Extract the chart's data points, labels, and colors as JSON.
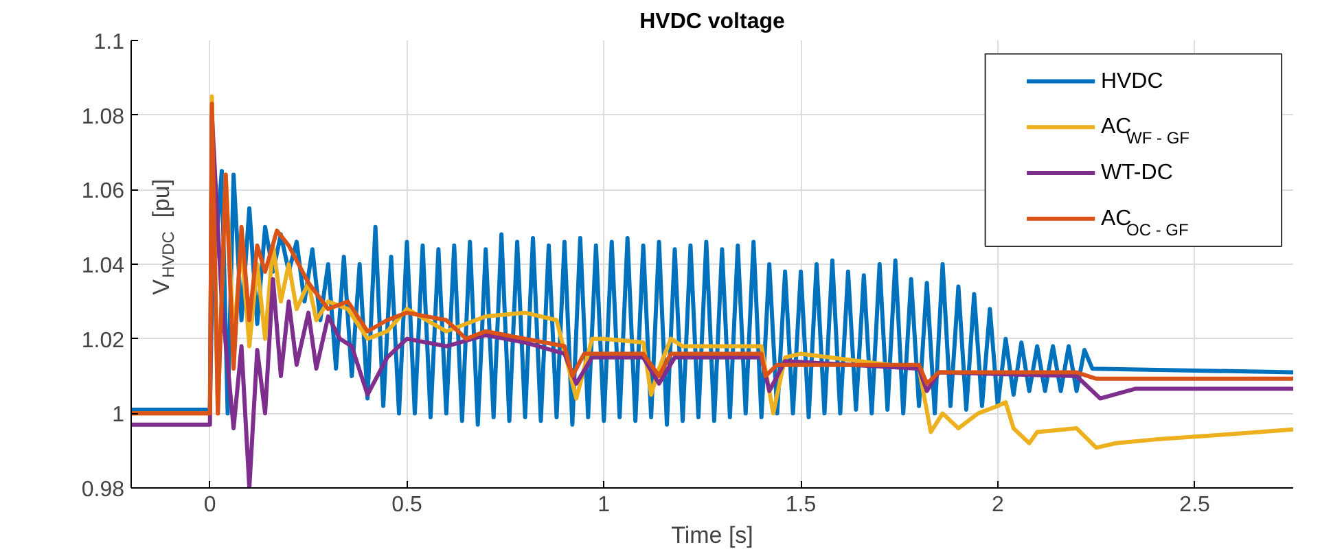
{
  "chart_data": {
    "type": "line",
    "title": "HVDC voltage",
    "xlabel": "Time [s]",
    "ylabel": "V$_{HVDC}$ [pu]",
    "xlim": [
      -0.2,
      2.75
    ],
    "ylim": [
      0.98,
      1.1
    ],
    "xticks": [
      0,
      0.5,
      1,
      1.5,
      2,
      2.5
    ],
    "yticks": [
      0.98,
      1,
      1.02,
      1.04,
      1.06,
      1.08,
      1.1
    ],
    "grid": true,
    "legend": "top right",
    "line_style": "solid",
    "series": [
      {
        "name": "HVDC",
        "color": "#0072bd",
        "x": [
          -0.2,
          0,
          0.005,
          0.03,
          0.045,
          0.06,
          0.08,
          0.1,
          0.12,
          0.14,
          0.16,
          0.18,
          0.2,
          0.22,
          0.24,
          0.26,
          0.28,
          0.3,
          0.32,
          0.34,
          0.36,
          0.38,
          0.4,
          0.42,
          0.44,
          0.46,
          0.48,
          0.5,
          0.52,
          0.54,
          0.56,
          0.58,
          0.6,
          0.62,
          0.64,
          0.66,
          0.68,
          0.7,
          0.72,
          0.74,
          0.76,
          0.78,
          0.8,
          0.82,
          0.84,
          0.86,
          0.88,
          0.9,
          0.92,
          0.94,
          0.96,
          0.98,
          1.0,
          1.02,
          1.04,
          1.06,
          1.08,
          1.1,
          1.12,
          1.14,
          1.16,
          1.18,
          1.2,
          1.22,
          1.24,
          1.26,
          1.28,
          1.3,
          1.32,
          1.34,
          1.36,
          1.38,
          1.4,
          1.42,
          1.44,
          1.46,
          1.48,
          1.5,
          1.52,
          1.54,
          1.56,
          1.58,
          1.6,
          1.62,
          1.64,
          1.66,
          1.68,
          1.7,
          1.72,
          1.74,
          1.76,
          1.78,
          1.8,
          1.82,
          1.84,
          1.86,
          1.88,
          1.9,
          1.92,
          1.94,
          1.96,
          1.98,
          2.0,
          2.02,
          2.04,
          2.06,
          2.08,
          2.1,
          2.12,
          2.14,
          2.16,
          2.18,
          2.2,
          2.22,
          2.24,
          2.75
        ],
        "values": [
          1.001,
          1.001,
          1.03,
          1.065,
          1.0,
          1.064,
          1.025,
          1.055,
          1.024,
          1.05,
          1.038,
          1.048,
          1.038,
          1.046,
          1.03,
          1.044,
          1.025,
          1.04,
          1.012,
          1.042,
          1.01,
          1.04,
          1.004,
          1.05,
          1.002,
          1.042,
          1.0,
          1.046,
          1.0,
          1.045,
          0.999,
          1.044,
          1.0,
          1.045,
          0.998,
          1.046,
          0.997,
          1.044,
          0.999,
          1.048,
          0.998,
          1.046,
          0.999,
          1.047,
          0.998,
          1.045,
          0.999,
          1.046,
          0.997,
          1.047,
          0.999,
          1.045,
          0.998,
          1.046,
          0.999,
          1.047,
          0.998,
          1.045,
          0.999,
          1.046,
          0.997,
          1.044,
          0.998,
          1.045,
          0.999,
          1.046,
          0.998,
          1.044,
          0.999,
          1.045,
          1.0,
          1.046,
          0.999,
          1.04,
          1.0,
          1.038,
          1.0,
          1.038,
          0.999,
          1.04,
          1.0,
          1.041,
          1.0,
          1.038,
          1.001,
          1.037,
          1.0,
          1.04,
          1.001,
          1.041,
          1.0,
          1.036,
          1.002,
          1.035,
          1.0,
          1.04,
          1.002,
          1.034,
          1.001,
          1.032,
          1.002,
          1.028,
          1.002,
          1.02,
          1.005,
          1.019,
          1.006,
          1.018,
          1.006,
          1.018,
          1.006,
          1.018,
          1.006,
          1.017,
          1.012,
          1.011
        ]
      },
      {
        "name": "AC$_{WF - GF}$",
        "color": "#edb120",
        "x": [
          -0.2,
          0,
          0.005,
          0.02,
          0.04,
          0.06,
          0.08,
          0.1,
          0.12,
          0.14,
          0.16,
          0.18,
          0.2,
          0.22,
          0.25,
          0.27,
          0.3,
          0.35,
          0.4,
          0.45,
          0.5,
          0.6,
          0.7,
          0.8,
          0.88,
          0.93,
          0.97,
          1.0,
          1.1,
          1.12,
          1.14,
          1.17,
          1.2,
          1.4,
          1.43,
          1.46,
          1.5,
          1.8,
          1.83,
          1.86,
          1.9,
          1.95,
          2.0,
          2.02,
          2.04,
          2.08,
          2.1,
          2.2,
          2.25,
          2.3,
          2.4,
          2.6,
          2.75
        ],
        "values": [
          1.0,
          1.0,
          1.085,
          1.0,
          1.064,
          1.02,
          1.045,
          1.018,
          1.04,
          1.02,
          1.045,
          1.03,
          1.04,
          1.028,
          1.035,
          1.025,
          1.03,
          1.028,
          1.02,
          1.022,
          1.028,
          1.022,
          1.026,
          1.027,
          1.025,
          1.004,
          1.02,
          1.02,
          1.019,
          1.005,
          1.012,
          1.02,
          1.018,
          1.018,
          1.0,
          1.015,
          1.016,
          1.012,
          0.995,
          1.0,
          0.996,
          1.0,
          1.002,
          1.003,
          0.996,
          0.992,
          0.995,
          0.996,
          0.9908,
          0.992,
          0.993,
          0.9945,
          0.9957
        ]
      },
      {
        "name": "WT-DC",
        "color": "#7e2f8e",
        "x": [
          -0.2,
          0,
          0.005,
          0.03,
          0.06,
          0.08,
          0.1,
          0.12,
          0.14,
          0.16,
          0.18,
          0.2,
          0.22,
          0.25,
          0.27,
          0.3,
          0.33,
          0.36,
          0.4,
          0.45,
          0.5,
          0.6,
          0.7,
          0.8,
          0.9,
          0.93,
          0.97,
          1.1,
          1.14,
          1.18,
          1.4,
          1.42,
          1.46,
          1.8,
          1.82,
          1.85,
          2.2,
          2.26,
          2.35,
          2.75
        ],
        "values": [
          0.997,
          0.997,
          1.08,
          1.03,
          0.996,
          1.018,
          0.98,
          1.017,
          1.0,
          1.036,
          1.01,
          1.03,
          1.013,
          1.027,
          1.012,
          1.026,
          1.02,
          1.018,
          1.005,
          1.015,
          1.02,
          1.018,
          1.021,
          1.019,
          1.016,
          1.008,
          1.015,
          1.015,
          1.008,
          1.015,
          1.015,
          1.006,
          1.014,
          1.012,
          1.006,
          1.011,
          1.01,
          1.004,
          1.0066,
          1.0066
        ]
      },
      {
        "name": "AC$_{OC - GF}$",
        "color": "#d95319",
        "x": [
          -0.2,
          0,
          0.005,
          0.02,
          0.04,
          0.06,
          0.08,
          0.1,
          0.12,
          0.14,
          0.17,
          0.2,
          0.25,
          0.3,
          0.35,
          0.4,
          0.45,
          0.5,
          0.6,
          0.65,
          0.7,
          0.8,
          0.9,
          0.92,
          0.95,
          1.1,
          1.14,
          1.17,
          1.4,
          1.41,
          1.44,
          1.8,
          1.82,
          1.85,
          2.2,
          2.25,
          2.75
        ],
        "values": [
          1.0,
          1.0,
          1.083,
          1.0,
          1.064,
          1.012,
          1.05,
          1.025,
          1.045,
          1.038,
          1.049,
          1.045,
          1.035,
          1.028,
          1.03,
          1.022,
          1.025,
          1.027,
          1.025,
          1.02,
          1.022,
          1.02,
          1.018,
          1.01,
          1.016,
          1.016,
          1.01,
          1.016,
          1.016,
          1.01,
          1.013,
          1.013,
          1.008,
          1.011,
          1.011,
          1.0093,
          1.0093
        ]
      }
    ]
  }
}
